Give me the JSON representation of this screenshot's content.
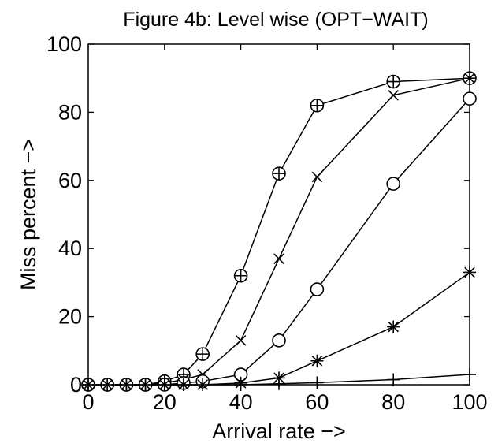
{
  "chart_data": {
    "type": "line",
    "title": "Figure 4b: Level wise (OPT−WAIT)",
    "xlabel": "Arrival rate −>",
    "ylabel": "Miss percent −>",
    "xlim": [
      0,
      100
    ],
    "ylim": [
      0,
      100
    ],
    "xticks": [
      "0",
      "20",
      "40",
      "60",
      "80",
      "100"
    ],
    "yticks": [
      "0",
      "20",
      "40",
      "60",
      "80",
      "100"
    ],
    "grid": false,
    "legend": "none",
    "series": [
      {
        "marker": "circle-plus",
        "x": [
          0,
          5,
          10,
          15,
          20,
          25,
          30,
          40,
          50,
          60,
          80,
          100
        ],
        "y": [
          0,
          0,
          0,
          0,
          1,
          3,
          9,
          32,
          62,
          82,
          89,
          90
        ]
      },
      {
        "marker": "x",
        "x": [
          0,
          5,
          10,
          15,
          20,
          25,
          30,
          40,
          50,
          60,
          80,
          100
        ],
        "y": [
          0,
          0,
          0,
          0,
          0.5,
          1.5,
          3,
          13,
          37,
          61,
          85,
          90
        ]
      },
      {
        "marker": "circle",
        "x": [
          0,
          5,
          10,
          15,
          20,
          25,
          30,
          40,
          50,
          60,
          80,
          100
        ],
        "y": [
          0,
          0,
          0,
          0,
          0,
          0.5,
          1,
          3,
          13,
          28,
          59,
          84
        ]
      },
      {
        "marker": "asterisk",
        "x": [
          0,
          5,
          10,
          15,
          20,
          25,
          30,
          40,
          50,
          60,
          80,
          100
        ],
        "y": [
          0,
          0,
          0,
          0,
          0,
          0,
          0,
          0.5,
          2,
          7,
          17,
          33
        ]
      },
      {
        "marker": "plus",
        "x": [
          0,
          5,
          10,
          15,
          20,
          25,
          30,
          40,
          50,
          60,
          80,
          100
        ],
        "y": [
          0,
          0,
          0,
          0,
          0,
          0,
          0,
          0,
          0.3,
          0.6,
          1.5,
          3
        ]
      }
    ]
  }
}
